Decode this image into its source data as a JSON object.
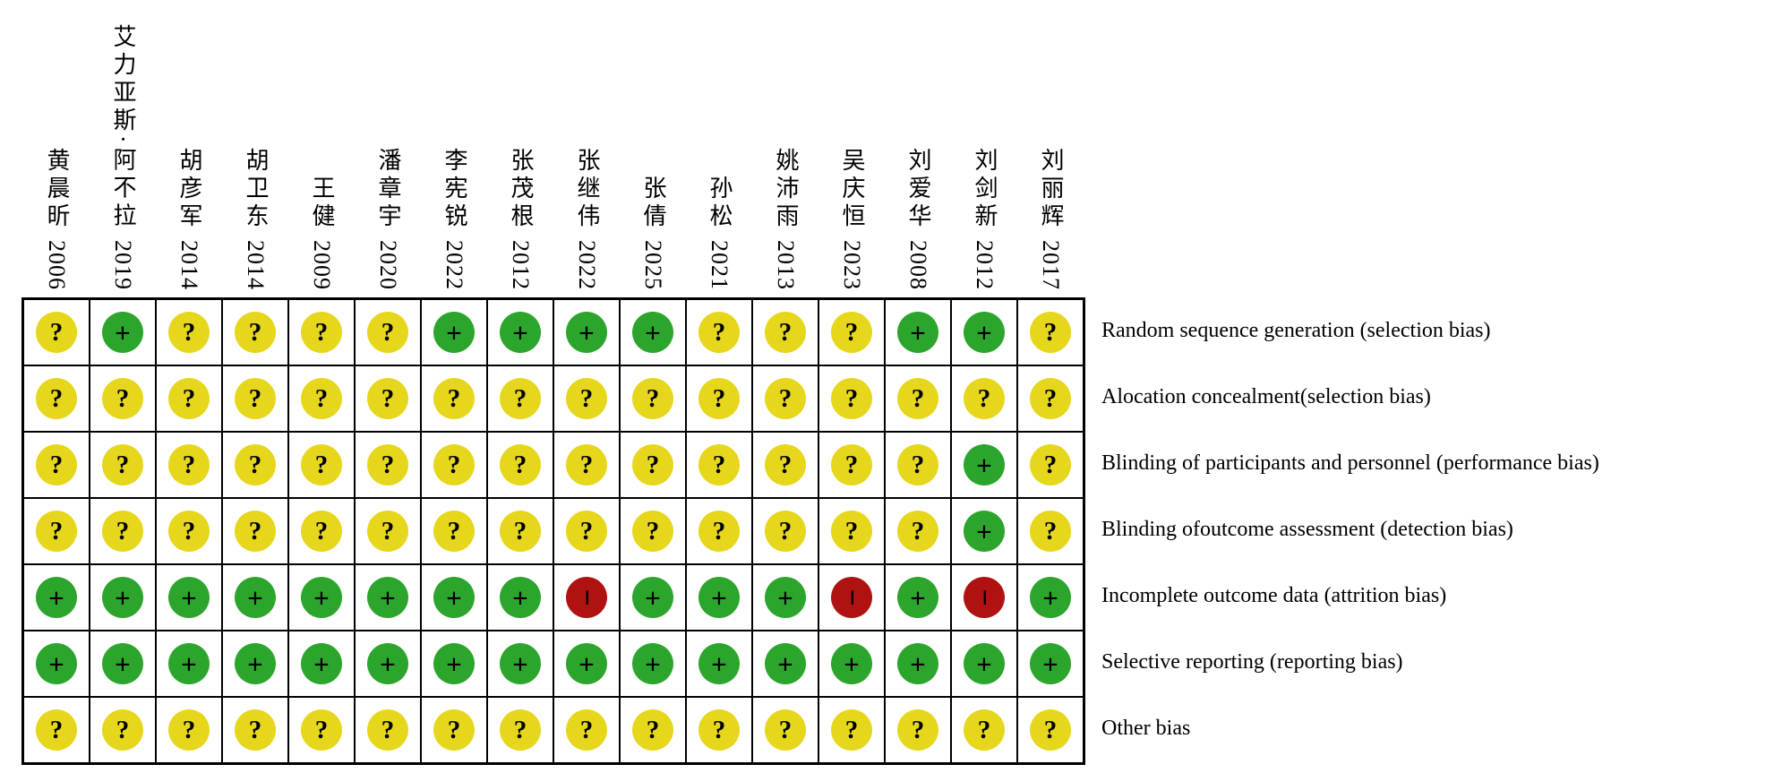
{
  "chart_data": {
    "type": "heatmap",
    "description": "risk-of-bias-summary",
    "columns": [
      {
        "name": "黄晨昕",
        "year": "2006"
      },
      {
        "name": "艾力亚斯·阿不拉",
        "year": "2019"
      },
      {
        "name": "胡彦军",
        "year": "2014"
      },
      {
        "name": "胡卫东",
        "year": "2014"
      },
      {
        "name": "王健",
        "year": "2009"
      },
      {
        "name": "潘章宇",
        "year": "2020"
      },
      {
        "name": "李宪锐",
        "year": "2022"
      },
      {
        "name": "张茂根",
        "year": "2012"
      },
      {
        "name": "张继伟",
        "year": "2022"
      },
      {
        "name": "张倩",
        "year": "2025"
      },
      {
        "name": "孙松",
        "year": "2021"
      },
      {
        "name": "姚沛雨",
        "year": "2013"
      },
      {
        "name": "吴庆恒",
        "year": "2023"
      },
      {
        "name": "刘爱华",
        "year": "2008"
      },
      {
        "name": "刘剑新",
        "year": "2012"
      },
      {
        "name": "刘丽辉",
        "year": "2017"
      }
    ],
    "rows": [
      "Random sequence generation (selection bias)",
      "Alocation concealment(selection bias)",
      "Blinding of participants and personnel (performance bias)",
      "Blinding ofoutcome assessment (detection bias)",
      "Incomplete outcome data (attrition bias)",
      "Selective reporting (reporting bias)",
      "Other bias"
    ],
    "values": [
      [
        "?",
        "+",
        "?",
        "?",
        "?",
        "?",
        "+",
        "+",
        "+",
        "+",
        "?",
        "?",
        "?",
        "+",
        "+",
        "?"
      ],
      [
        "?",
        "?",
        "?",
        "?",
        "?",
        "?",
        "?",
        "?",
        "?",
        "?",
        "?",
        "?",
        "?",
        "?",
        "?",
        "?"
      ],
      [
        "?",
        "?",
        "?",
        "?",
        "?",
        "?",
        "?",
        "?",
        "?",
        "?",
        "?",
        "?",
        "?",
        "?",
        "+",
        "?"
      ],
      [
        "?",
        "?",
        "?",
        "?",
        "?",
        "?",
        "?",
        "?",
        "?",
        "?",
        "?",
        "?",
        "?",
        "?",
        "+",
        "?"
      ],
      [
        "+",
        "+",
        "+",
        "+",
        "+",
        "+",
        "+",
        "+",
        "-",
        "+",
        "+",
        "+",
        "-",
        "+",
        "-",
        "+"
      ],
      [
        "+",
        "+",
        "+",
        "+",
        "+",
        "+",
        "+",
        "+",
        "+",
        "+",
        "+",
        "+",
        "+",
        "+",
        "+",
        "+"
      ],
      [
        "?",
        "?",
        "?",
        "?",
        "?",
        "?",
        "?",
        "?",
        "?",
        "?",
        "?",
        "?",
        "?",
        "?",
        "?",
        "?"
      ]
    ],
    "legend": {
      "+": {
        "key": "low-risk",
        "symbol": "+",
        "color": "#2CA52C"
      },
      "?": {
        "key": "unclear-risk",
        "symbol": "?",
        "color": "#E6D71C"
      },
      "-": {
        "key": "high-risk",
        "symbol": "−",
        "color": "#B01212"
      }
    }
  }
}
